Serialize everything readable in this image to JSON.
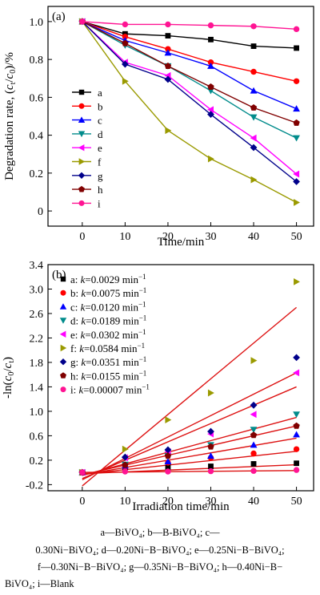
{
  "chart_data": [
    {
      "type": "line",
      "panel_label": "(a)",
      "xlabel": "Time/min",
      "ylabel_parts": [
        "Degradation rate, (",
        "c",
        "t",
        "/",
        "c",
        "0",
        ")/%"
      ],
      "xlim": [
        -8,
        54
      ],
      "ylim": [
        -0.08,
        1.08
      ],
      "xticks": [
        0,
        10,
        20,
        30,
        40,
        50
      ],
      "yticks": [
        0,
        0.2,
        0.4,
        0.6,
        0.8,
        1.0
      ],
      "ytick_labels": [
        "0",
        "0.2",
        "0.4",
        "0.6",
        "0.8",
        "1.0"
      ],
      "x": [
        0,
        10,
        20,
        30,
        40,
        50
      ],
      "series": [
        {
          "name": "a",
          "color": "#000000",
          "marker": "square",
          "values": [
            1.0,
            0.935,
            0.925,
            0.905,
            0.87,
            0.86
          ]
        },
        {
          "name": "b",
          "color": "#ff0000",
          "marker": "circle",
          "values": [
            1.0,
            0.92,
            0.855,
            0.785,
            0.735,
            0.685
          ]
        },
        {
          "name": "c",
          "color": "#0000ff",
          "marker": "triangle-up",
          "values": [
            1.0,
            0.9,
            0.835,
            0.765,
            0.635,
            0.54
          ]
        },
        {
          "name": "d",
          "color": "#008b8b",
          "marker": "triangle-down",
          "values": [
            1.0,
            0.875,
            0.765,
            0.635,
            0.495,
            0.385
          ]
        },
        {
          "name": "e",
          "color": "#ff00ff",
          "marker": "triangle-left",
          "values": [
            1.0,
            0.785,
            0.715,
            0.535,
            0.385,
            0.195
          ]
        },
        {
          "name": "f",
          "color": "#9a9a00",
          "marker": "triangle-right",
          "values": [
            1.0,
            0.685,
            0.425,
            0.275,
            0.165,
            0.045
          ]
        },
        {
          "name": "g",
          "color": "#00008b",
          "marker": "diamond",
          "values": [
            1.0,
            0.775,
            0.695,
            0.51,
            0.335,
            0.155
          ]
        },
        {
          "name": "h",
          "color": "#800000",
          "marker": "pentagon",
          "values": [
            1.0,
            0.885,
            0.765,
            0.655,
            0.545,
            0.465
          ]
        },
        {
          "name": "i",
          "color": "#ff1493",
          "marker": "circle",
          "values": [
            1.0,
            0.985,
            0.985,
            0.98,
            0.975,
            0.96
          ]
        }
      ],
      "legend": "left"
    },
    {
      "type": "scatter",
      "panel_label": "(b)",
      "xlabel": "Irradiation time/min",
      "ylabel_parts": [
        "-ln(",
        "c",
        "0",
        "/",
        "c",
        "t",
        ")"
      ],
      "xlim": [
        -8,
        54
      ],
      "ylim": [
        -0.3,
        3.4
      ],
      "xticks": [
        0,
        10,
        20,
        30,
        40,
        50
      ],
      "yticks": [
        -0.2,
        0.2,
        0.6,
        1.0,
        1.4,
        1.8,
        2.2,
        2.6,
        3.0,
        3.4
      ],
      "ytick_labels": [
        "-0.2",
        "0.2",
        "0.6",
        "1.0",
        "1.4",
        "1.8",
        "2.2",
        "2.6",
        "3.0",
        "3.4"
      ],
      "x": [
        0,
        10,
        20,
        30,
        40,
        50
      ],
      "fit_color": "#dd1111",
      "series": [
        {
          "name": "a",
          "k_label": "k",
          "k_value": "=0.0029 min",
          "k_exp": "−1",
          "color": "#000000",
          "marker": "square",
          "values": [
            0,
            0.07,
            0.08,
            0.1,
            0.14,
            0.15
          ],
          "fit": [
            -0.02,
            0.125
          ]
        },
        {
          "name": "b",
          "k_label": "k",
          "k_value": "=0.0075 min",
          "k_exp": "−1",
          "color": "#ff0000",
          "marker": "circle",
          "values": [
            0,
            0.09,
            0.16,
            0.24,
            0.31,
            0.38
          ],
          "fit": [
            -0.03,
            0.345
          ]
        },
        {
          "name": "c",
          "k_label": "k",
          "k_value": "=0.0120 min",
          "k_exp": "−1",
          "color": "#0000ff",
          "marker": "triangle-up",
          "values": [
            0,
            0.11,
            0.18,
            0.27,
            0.45,
            0.62
          ],
          "fit": [
            -0.04,
            0.56
          ]
        },
        {
          "name": "d",
          "k_label": "k",
          "k_value": "=0.0189 min",
          "k_exp": "−1",
          "color": "#008b8b",
          "marker": "triangle-down",
          "values": [
            0,
            0.13,
            0.27,
            0.45,
            0.7,
            0.95
          ],
          "fit": [
            -0.05,
            0.9
          ]
        },
        {
          "name": "e",
          "k_label": "k",
          "k_value": "=0.0302 min",
          "k_exp": "−1",
          "color": "#ff00ff",
          "marker": "triangle-left",
          "values": [
            0,
            0.24,
            0.34,
            0.63,
            0.95,
            1.63
          ],
          "fit": [
            -0.1,
            1.4
          ]
        },
        {
          "name": "f",
          "k_label": "k",
          "k_value": "=0.0584 min",
          "k_exp": "−1",
          "color": "#9a9a00",
          "marker": "triangle-right",
          "values": [
            0,
            0.38,
            0.86,
            1.3,
            1.83,
            3.12
          ],
          "fit": [
            -0.22,
            2.7
          ]
        },
        {
          "name": "g",
          "k_label": "k",
          "k_value": "=0.0351 min",
          "k_exp": "−1",
          "color": "#00008b",
          "marker": "diamond",
          "values": [
            0,
            0.25,
            0.37,
            0.67,
            1.1,
            1.88
          ],
          "fit": [
            -0.12,
            1.63
          ]
        },
        {
          "name": "h",
          "k_label": "k",
          "k_value": "=0.0155 min",
          "k_exp": "−1",
          "color": "#800000",
          "marker": "pentagon",
          "values": [
            0,
            0.12,
            0.27,
            0.42,
            0.61,
            0.76
          ],
          "fit": [
            -0.04,
            0.76
          ]
        },
        {
          "name": "i",
          "k_label": "k",
          "k_value": "=0.00007 min",
          "k_exp": "−1",
          "color": "#ff1493",
          "marker": "circle",
          "values": [
            0,
            0.015,
            0.015,
            0.02,
            0.025,
            0.04
          ],
          "fit": [
            0.0,
            0.03
          ]
        }
      ],
      "legend": "top-left"
    }
  ],
  "caption": {
    "line1": "a—BiVO₄; b—B-BiVO₄; c—",
    "line2": "0.30Ni−BiVO₄; d—0.20Ni−B−BiVO₄; e—0.25Ni−B−BiVO₄;",
    "line3": "f—0.30Ni−B−BiVO₄; g—0.35Ni−B−BiVO₄; h—0.40Ni−B−",
    "line4": "BiVO₄; i—Blank"
  }
}
